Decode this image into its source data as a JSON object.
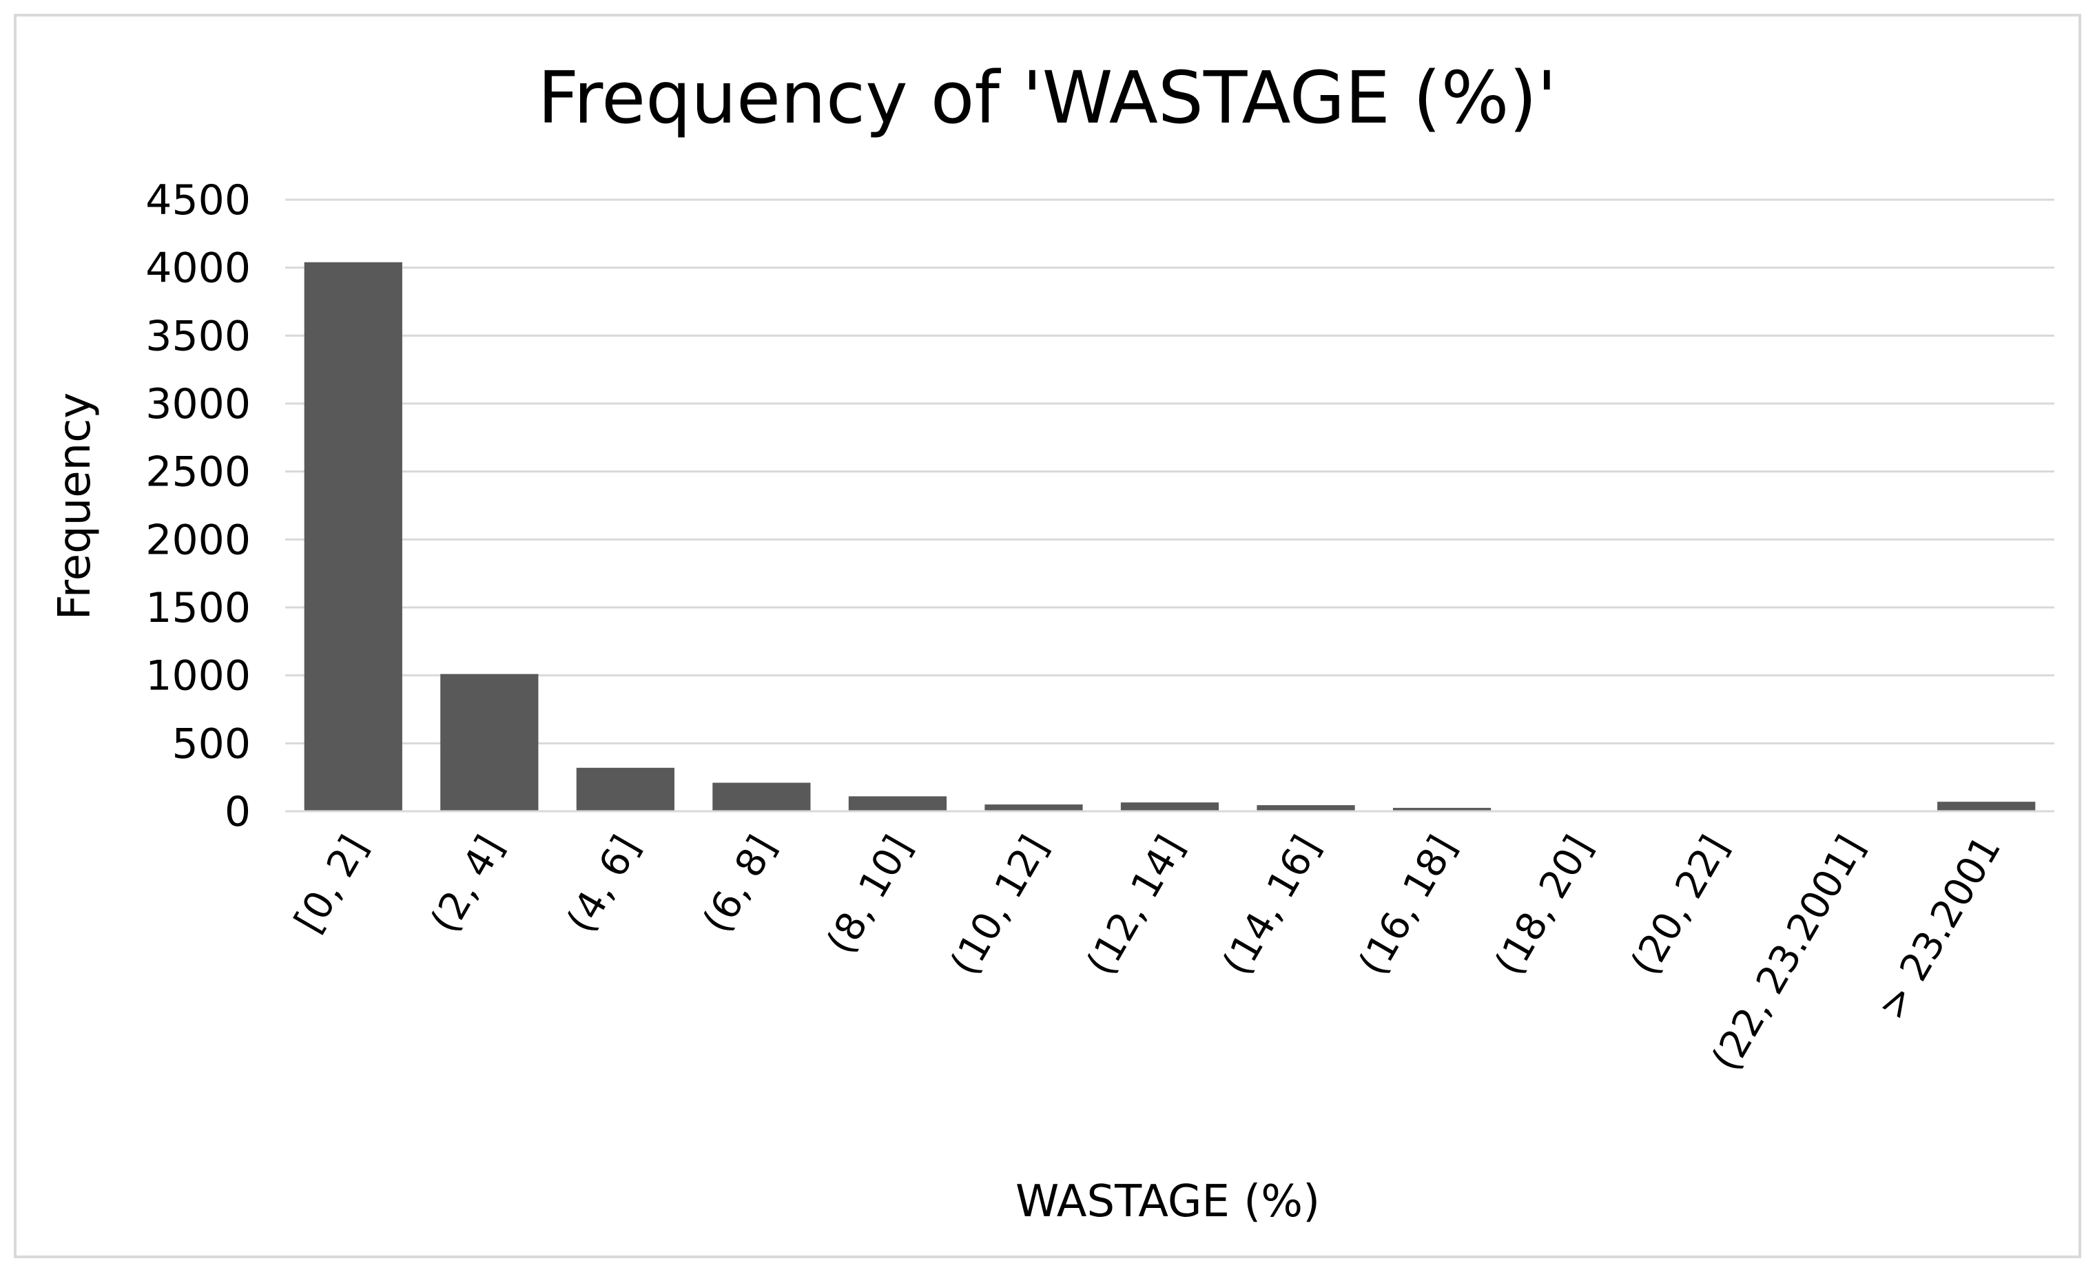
{
  "colors": {
    "bar": "#595959",
    "grid": "#d9d9d9",
    "border": "#d9d9d9",
    "text": "#000000"
  },
  "chart_data": {
    "type": "bar",
    "title": "Frequency of 'WASTAGE (%)'",
    "xlabel": "WASTAGE (%)",
    "ylabel": "Frequency",
    "ylim": [
      0,
      4500
    ],
    "yticks": [
      0,
      500,
      1000,
      1500,
      2000,
      2500,
      3000,
      3500,
      4000,
      4500
    ],
    "grid": true,
    "legend": "none",
    "categories": [
      "[0, 2]",
      "(2, 4]",
      "(4, 6]",
      "(6, 8]",
      "(8, 10]",
      "(10, 12]",
      "(12, 14]",
      "(14, 16]",
      "(16, 18]",
      "(18, 20]",
      "(20, 22]",
      "(22, 23.2001]",
      "> 23.2001"
    ],
    "values": [
      4040,
      1010,
      320,
      210,
      110,
      50,
      65,
      45,
      25,
      0,
      0,
      0,
      70
    ]
  }
}
